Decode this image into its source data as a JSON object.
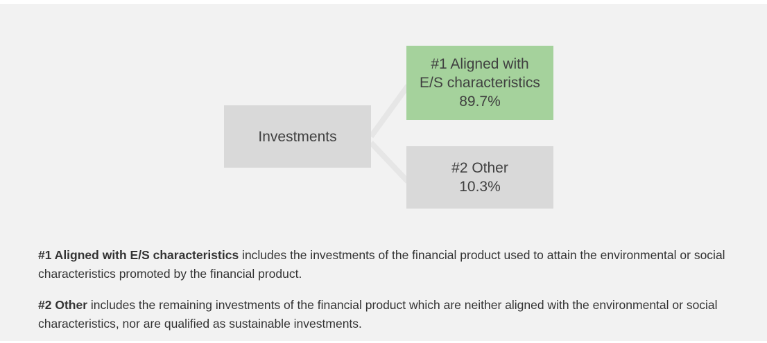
{
  "nodes": [
    {
      "label": "Investments"
    },
    {
      "label_lines": [
        "#1 Aligned with",
        "E/S characteristics"
      ],
      "value": "89.7%"
    },
    {
      "label_lines": [
        "#2 Other"
      ],
      "value": "10.3%"
    }
  ],
  "notes": [
    {
      "term": "#1 Aligned with E/S characteristics",
      "text": " includes the investments of the financial product used to attain the environmental or social characteristics promoted by the financial product."
    },
    {
      "term": "#2 Other",
      "text": " includes the remaining investments of the financial product which are neither aligned with the environmental or social characteristics, nor are qualified as sustainable investments."
    }
  ]
}
